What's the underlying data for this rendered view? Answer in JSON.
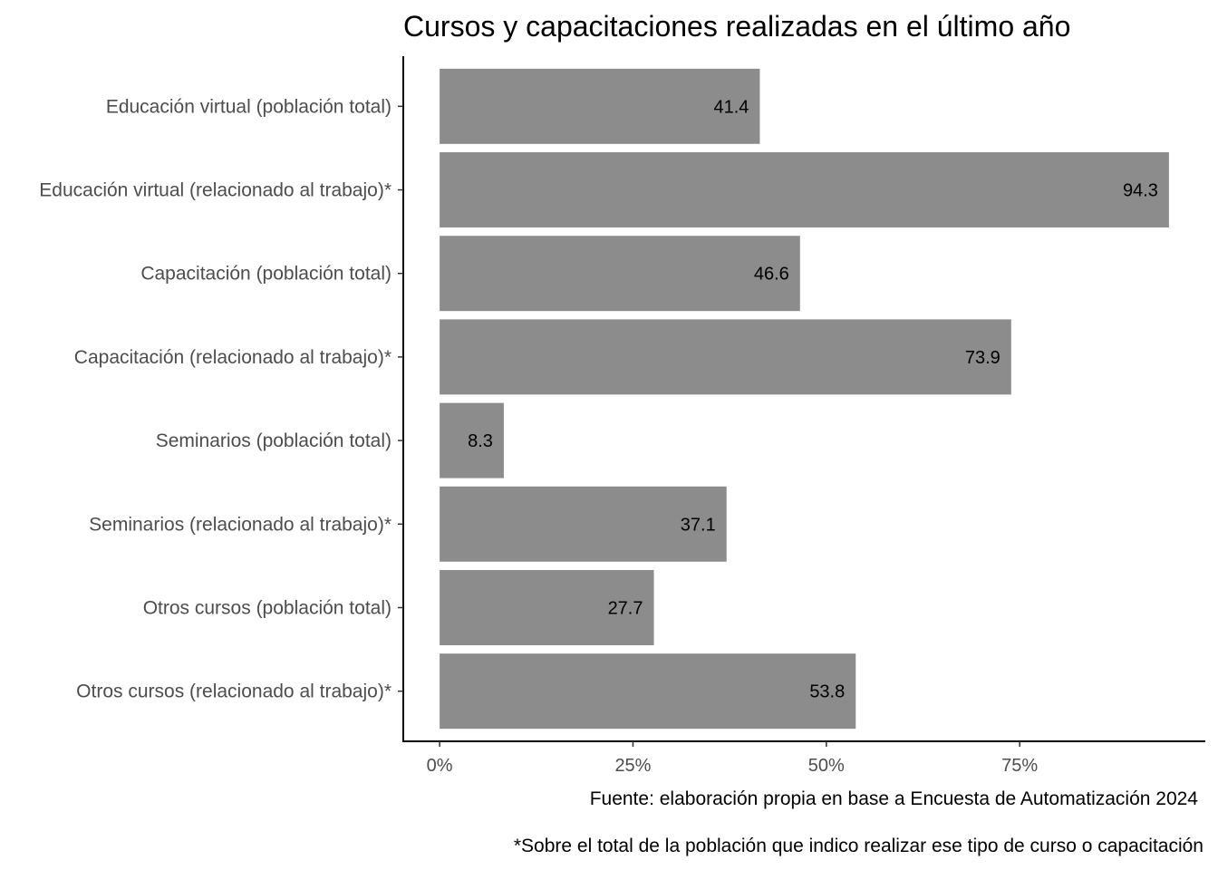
{
  "chart_data": {
    "type": "bar",
    "orientation": "horizontal",
    "title": "Cursos y capacitaciones realizadas en el último año",
    "xlabel": "",
    "ylabel": "",
    "categories": [
      "Educación virtual (población total)",
      "Educación virtual (relacionado al trabajo)*",
      "Capacitación (población total)",
      "Capacitación (relacionado al trabajo)*",
      "Seminarios (población total)",
      "Seminarios (relacionado al trabajo)*",
      "Otros cursos (población total)",
      "Otros cursos (relacionado al trabajo)*"
    ],
    "values": [
      41.4,
      94.3,
      46.6,
      73.9,
      8.3,
      37.1,
      27.7,
      53.8
    ],
    "data_labels": [
      "41.4",
      "94.3",
      "46.6",
      "73.9",
      "8.3",
      "37.1",
      "27.7",
      "53.8"
    ],
    "xticks": [
      0,
      25,
      50,
      75
    ],
    "xtick_labels": [
      "0%",
      "25%",
      "50%",
      "75%"
    ],
    "xlim": [
      -4.7,
      99
    ],
    "bar_color": "#8c8c8c",
    "grid": false,
    "legend": "none",
    "caption_lines": [
      "Fuente: elaboración propia en base a Encuesta de Automatización 2024",
      "*Sobre el total de la población que indico realizar ese tipo de curso o capacitación"
    ]
  }
}
